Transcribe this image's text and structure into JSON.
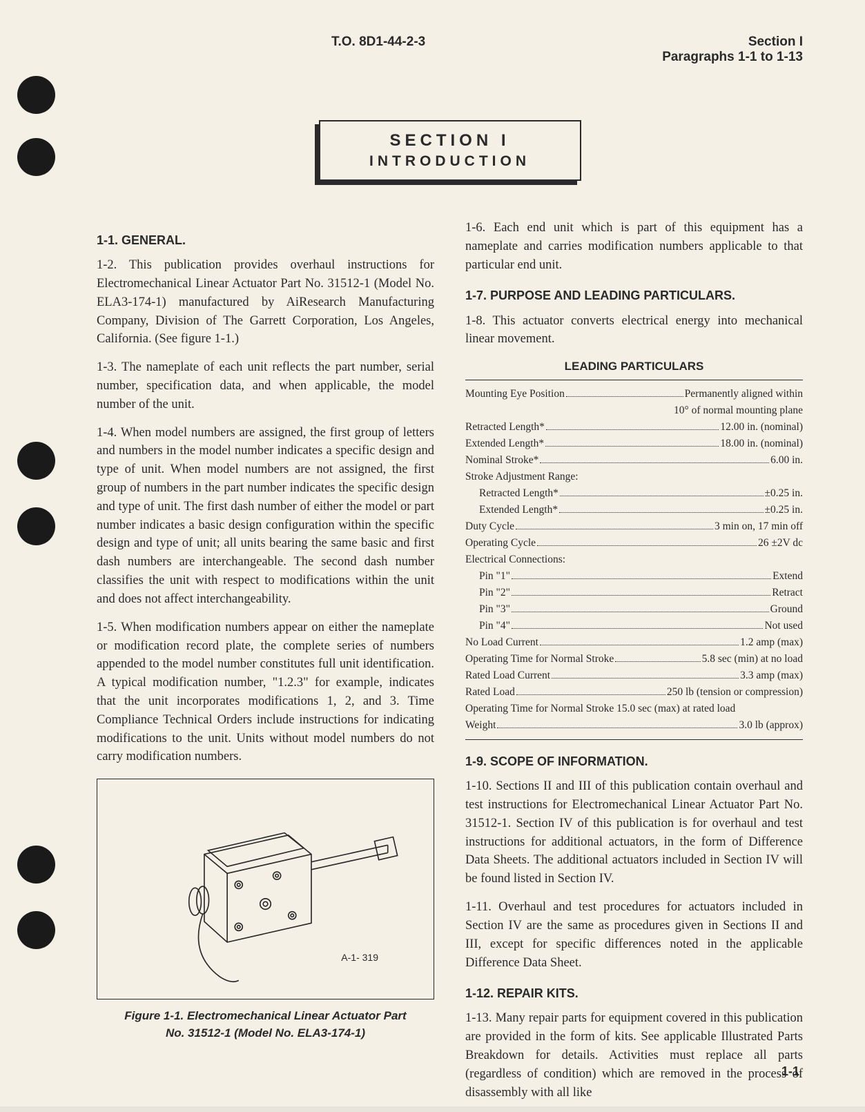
{
  "header": {
    "left": "T.O. 8D1-44-2-3",
    "right_line1": "Section I",
    "right_line2": "Paragraphs 1-1 to 1-13"
  },
  "banner": {
    "line1": "SECTION I",
    "line2": "INTRODUCTION"
  },
  "left_col": {
    "h1": "1-1. GENERAL.",
    "p1": "1-2. This publication provides overhaul instructions for Electromechanical Linear Actuator Part No. 31512-1 (Model No. ELA3-174-1) manufactured by AiResearch Manufacturing Company, Division of The Garrett Corporation, Los Angeles, California. (See figure 1-1.)",
    "p2": "1-3. The nameplate of each unit reflects the part number, serial number, specification data, and when applicable, the model number of the unit.",
    "p3": "1-4. When model numbers are assigned, the first group of letters and numbers in the model number indicates a specific design and type of unit. When model numbers are not assigned, the first group of numbers in the part number indicates the specific design and type of unit. The first dash number of either the model or part number indicates a basic design configuration within the specific design and type of unit; all units bearing the same basic and first dash numbers are interchangeable. The second dash number classifies the unit with respect to modifications within the unit and does not affect interchangeability.",
    "p4": "1-5. When modification numbers appear on either the nameplate or modification record plate, the complete series of numbers appended to the model number constitutes full unit identification. A typical modification number, \"1.2.3\" for example, indicates that the unit incorporates modifications 1, 2, and 3. Time Compliance Technical Orders include instructions for indicating modifications to the unit. Units without model numbers do not carry modification numbers.",
    "fig_label": "A-1- 319",
    "fig_caption_l1": "Figure 1-1. Electromechanical Linear Actuator Part",
    "fig_caption_l2": "No. 31512-1 (Model No. ELA3-174-1)"
  },
  "right_col": {
    "p1": "1-6. Each end unit which is part of this equipment has a nameplate and carries modification numbers applicable to that particular end unit.",
    "h2": "1-7. PURPOSE AND LEADING PARTICULARS.",
    "p2": "1-8. This actuator converts electrical energy into mechanical linear movement.",
    "particulars_title": "LEADING PARTICULARS",
    "specs": [
      {
        "l": "Mounting Eye Position",
        "v": "Permanently aligned within",
        "indent": false
      },
      {
        "right_only": "10° of normal mounting plane"
      },
      {
        "l": "Retracted Length*",
        "v": "12.00 in. (nominal)",
        "indent": false
      },
      {
        "l": "Extended Length*",
        "v": "18.00 in. (nominal)",
        "indent": false
      },
      {
        "l": "Nominal Stroke*",
        "v": "6.00 in.",
        "indent": false
      },
      {
        "plain": "Stroke Adjustment Range:"
      },
      {
        "l": "Retracted Length*",
        "v": "±0.25 in.",
        "indent": true
      },
      {
        "l": "Extended Length*",
        "v": "±0.25 in.",
        "indent": true
      },
      {
        "l": "Duty Cycle",
        "v": "3 min on, 17 min off",
        "indent": false
      },
      {
        "l": "Operating Cycle",
        "v": "26 ±2V dc",
        "indent": false
      },
      {
        "plain": "Electrical Connections:"
      },
      {
        "l": "Pin \"1\"",
        "v": "Extend",
        "indent": true
      },
      {
        "l": "Pin \"2\"",
        "v": "Retract",
        "indent": true
      },
      {
        "l": "Pin \"3\"",
        "v": "Ground",
        "indent": true
      },
      {
        "l": "Pin \"4\"",
        "v": "Not used",
        "indent": true
      },
      {
        "l": "No Load Current",
        "v": "1.2 amp (max)",
        "indent": false
      },
      {
        "l": "Operating Time for Normal Stroke",
        "v": "5.8 sec (min) at no load",
        "indent": false
      },
      {
        "l": "Rated Load Current",
        "v": "3.3 amp (max)",
        "indent": false
      },
      {
        "l": "Rated Load",
        "v": "250 lb (tension or compression)",
        "indent": false
      },
      {
        "plain": "Operating Time for Normal Stroke 15.0 sec (max) at rated load"
      },
      {
        "l": "Weight",
        "v": "3.0 lb (approx)",
        "indent": false
      }
    ],
    "h3": "1-9. SCOPE OF INFORMATION.",
    "p3": "1-10. Sections II and III of this publication contain overhaul and test instructions for Electromechanical Linear Actuator Part No. 31512-1. Section IV of this publication is for overhaul and test instructions for additional actuators, in the form of Difference Data Sheets. The additional actuators included in Section IV will be found listed in Section IV.",
    "p4": "1-11. Overhaul and test procedures for actuators included in Section IV are the same as procedures given in Sections II and III, except for specific differences noted in the applicable Difference Data Sheet.",
    "h4": "1-12. REPAIR KITS.",
    "p5": "1-13. Many repair parts for equipment covered in this publication are provided in the form of kits. See applicable Illustrated Parts Breakdown for details. Activities must replace all parts (regardless of condition) which are removed in the process of disassembly with all like"
  },
  "page_number": "1-1",
  "colors": {
    "page_bg": "#f5f0e6",
    "text": "#2a2a2a",
    "hole": "#1a1a1a"
  }
}
